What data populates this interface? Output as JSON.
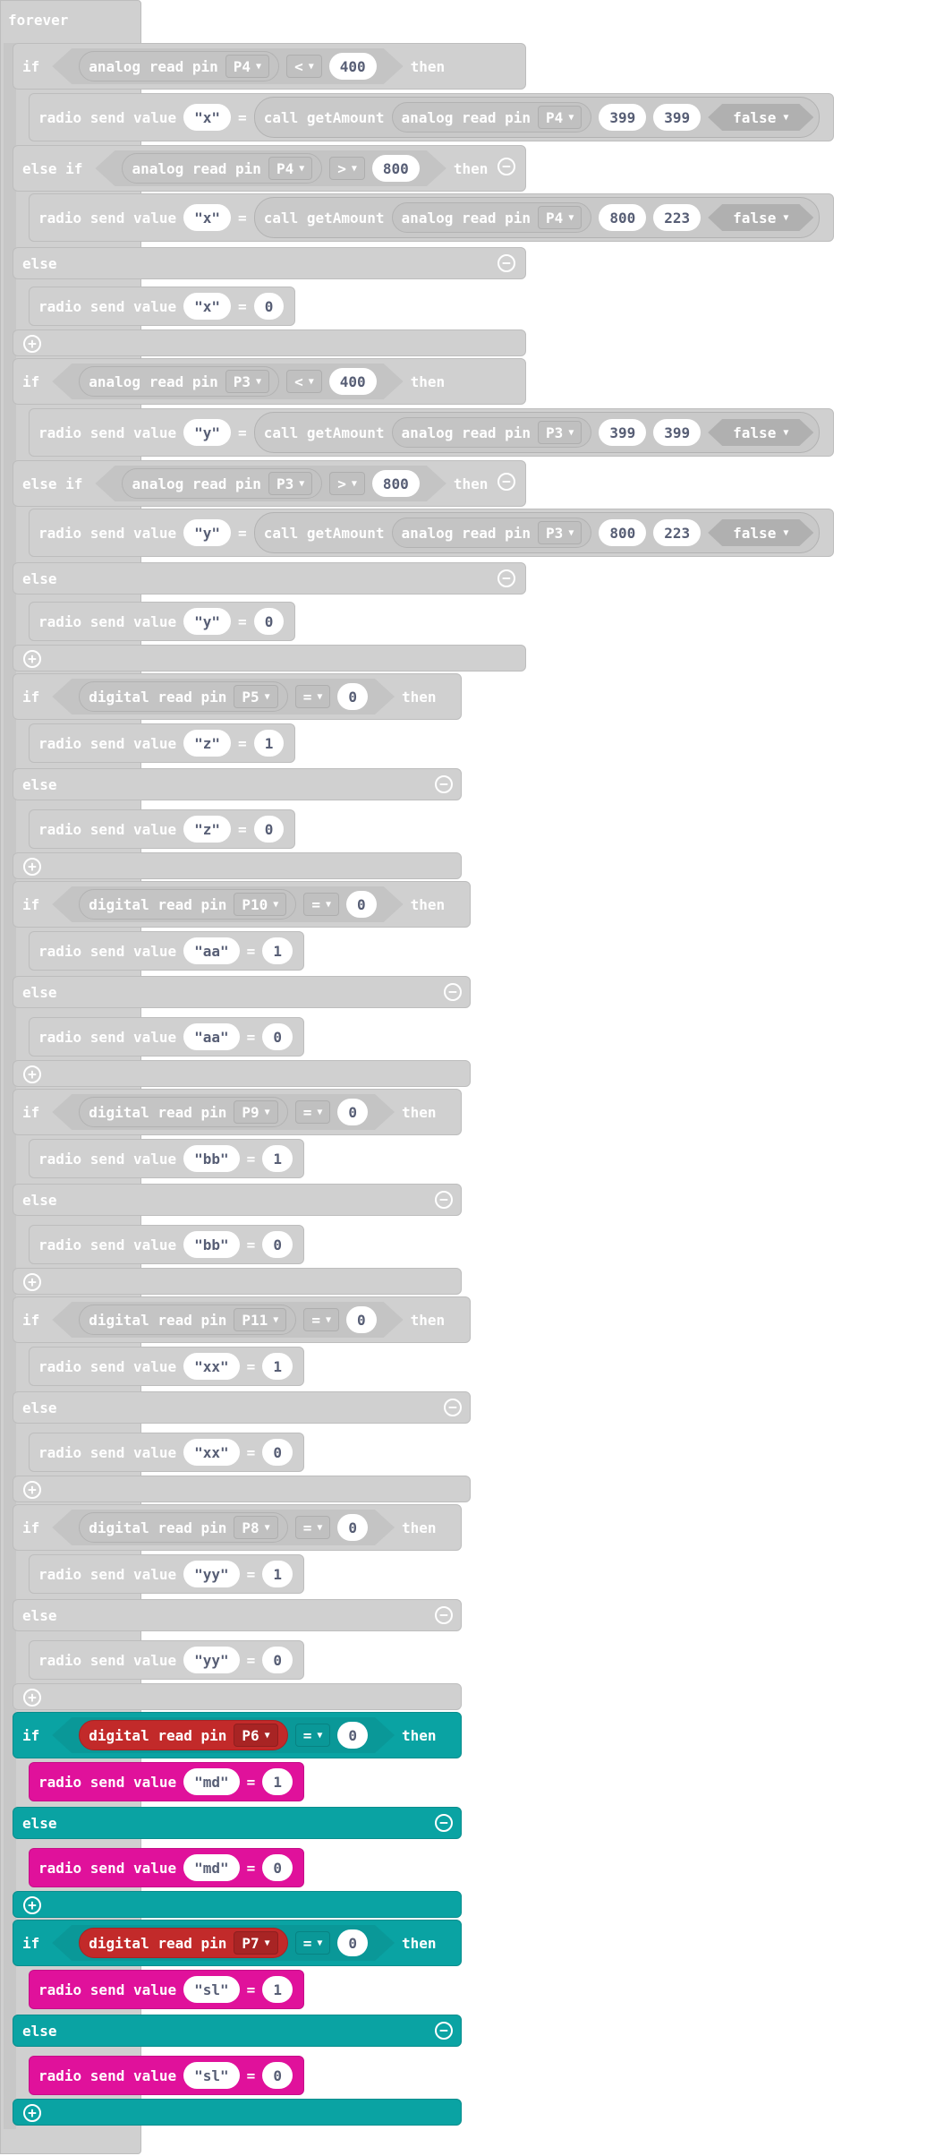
{
  "colors": {
    "disabled_gray": "#d0d0d0",
    "logic_teal": "#0aa3a3",
    "pins_red": "#c22a2a",
    "radio_magenta": "#e0119b",
    "text_white": "#ffffff",
    "literal_text": "#575e75"
  },
  "forever": {
    "label": "forever"
  },
  "keywords": {
    "if": "if",
    "then": "then",
    "else": "else",
    "else_if": "else if",
    "radio_send": "radio send value",
    "eq": "=",
    "analog_read": "analog read pin",
    "digital_read": "digital read pin",
    "call": "call getAmount",
    "quote": "\""
  },
  "icons": {
    "dropdown": "dropdown-arrow-icon",
    "add": "plus-circle-icon",
    "remove": "minus-circle-icon"
  },
  "if_p4": {
    "pin": "P4",
    "c1": {
      "op": "<",
      "val": "400"
    },
    "c2": {
      "op": ">",
      "val": "800"
    },
    "s1": {
      "name": "x",
      "a": "399",
      "b": "399",
      "bool": "false"
    },
    "s2": {
      "name": "x",
      "a": "800",
      "b": "223",
      "bool": "false"
    },
    "s3": {
      "name": "x",
      "val": "0"
    }
  },
  "if_p3": {
    "pin": "P3",
    "c1": {
      "op": "<",
      "val": "400"
    },
    "c2": {
      "op": ">",
      "val": "800"
    },
    "s1": {
      "name": "y",
      "a": "399",
      "b": "399",
      "bool": "false"
    },
    "s2": {
      "name": "y",
      "a": "800",
      "b": "223",
      "bool": "false"
    },
    "s3": {
      "name": "y",
      "val": "0"
    }
  },
  "if_p5": {
    "pin": "P5",
    "op": "=",
    "val": "0",
    "name": "z",
    "v1": "1",
    "v2": "0"
  },
  "if_p10": {
    "pin": "P10",
    "op": "=",
    "val": "0",
    "name": "aa",
    "v1": "1",
    "v2": "0"
  },
  "if_p9": {
    "pin": "P9",
    "op": "=",
    "val": "0",
    "name": "bb",
    "v1": "1",
    "v2": "0"
  },
  "if_p11": {
    "pin": "P11",
    "op": "=",
    "val": "0",
    "name": "xx",
    "v1": "1",
    "v2": "0"
  },
  "if_p8": {
    "pin": "P8",
    "op": "=",
    "val": "0",
    "name": "yy",
    "v1": "1",
    "v2": "0"
  },
  "if_p6": {
    "pin": "P6",
    "op": "=",
    "val": "0",
    "name": "md",
    "v1": "1",
    "v2": "0"
  },
  "if_p7": {
    "pin": "P7",
    "op": "=",
    "val": "0",
    "name": "sl",
    "v1": "1",
    "v2": "0"
  }
}
